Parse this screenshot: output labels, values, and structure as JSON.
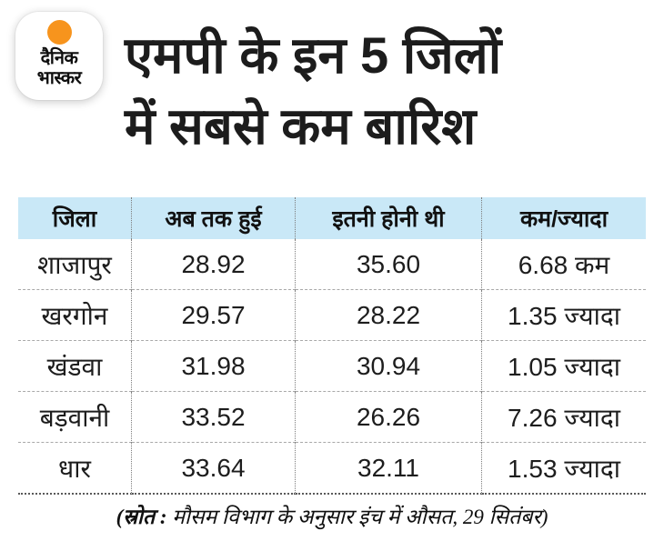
{
  "brand": {
    "logo_line1": "दैनिक",
    "logo_line2": "भास्कर",
    "dot_color": "#f7941d"
  },
  "title": {
    "line1": "एमपी के इन 5 जिलों",
    "line2": "में सबसे कम बारिश"
  },
  "table": {
    "header_bg": "#c9e8f7",
    "columns": [
      "जिला",
      "अब तक हुई",
      "इतनी होनी थी",
      "कम/ज्यादा"
    ],
    "rows": [
      {
        "district": "शाजापुर",
        "so_far": "28.92",
        "expected": "35.60",
        "diff": "6.68 कम"
      },
      {
        "district": "खरगोन",
        "so_far": "29.57",
        "expected": "28.22",
        "diff": "1.35 ज्यादा"
      },
      {
        "district": "खंडवा",
        "so_far": "31.98",
        "expected": "30.94",
        "diff": "1.05 ज्यादा"
      },
      {
        "district": "बड़वानी",
        "so_far": "33.52",
        "expected": "26.26",
        "diff": "7.26 ज्यादा"
      },
      {
        "district": "धार",
        "so_far": "33.64",
        "expected": "32.11",
        "diff": "1.53 ज्यादा"
      }
    ]
  },
  "footer": {
    "source_label": "(स्रोत :",
    "source_text": " मौसम विभाग के अनुसार इंच में औसत, 29 सितंबर)"
  },
  "chart_data": {
    "type": "table",
    "title": "एमपी के इन 5 जिलों में सबसे कम बारिश",
    "columns": [
      "जिला",
      "अब तक हुई",
      "इतनी होनी थी",
      "कम/ज्यादा"
    ],
    "rows": [
      [
        "शाजापुर",
        28.92,
        35.6,
        "6.68 कम"
      ],
      [
        "खरगोन",
        29.57,
        28.22,
        "1.35 ज्यादा"
      ],
      [
        "खंडवा",
        31.98,
        30.94,
        "1.05 ज्यादा"
      ],
      [
        "बड़वानी",
        33.52,
        26.26,
        "7.26 ज्यादा"
      ],
      [
        "धार",
        33.64,
        32.11,
        "1.53 ज्यादा"
      ]
    ],
    "units": "इंच (औसत)",
    "note": "(स्रोत : मौसम विभाग के अनुसार इंच में औसत, 29 सितंबर)"
  }
}
